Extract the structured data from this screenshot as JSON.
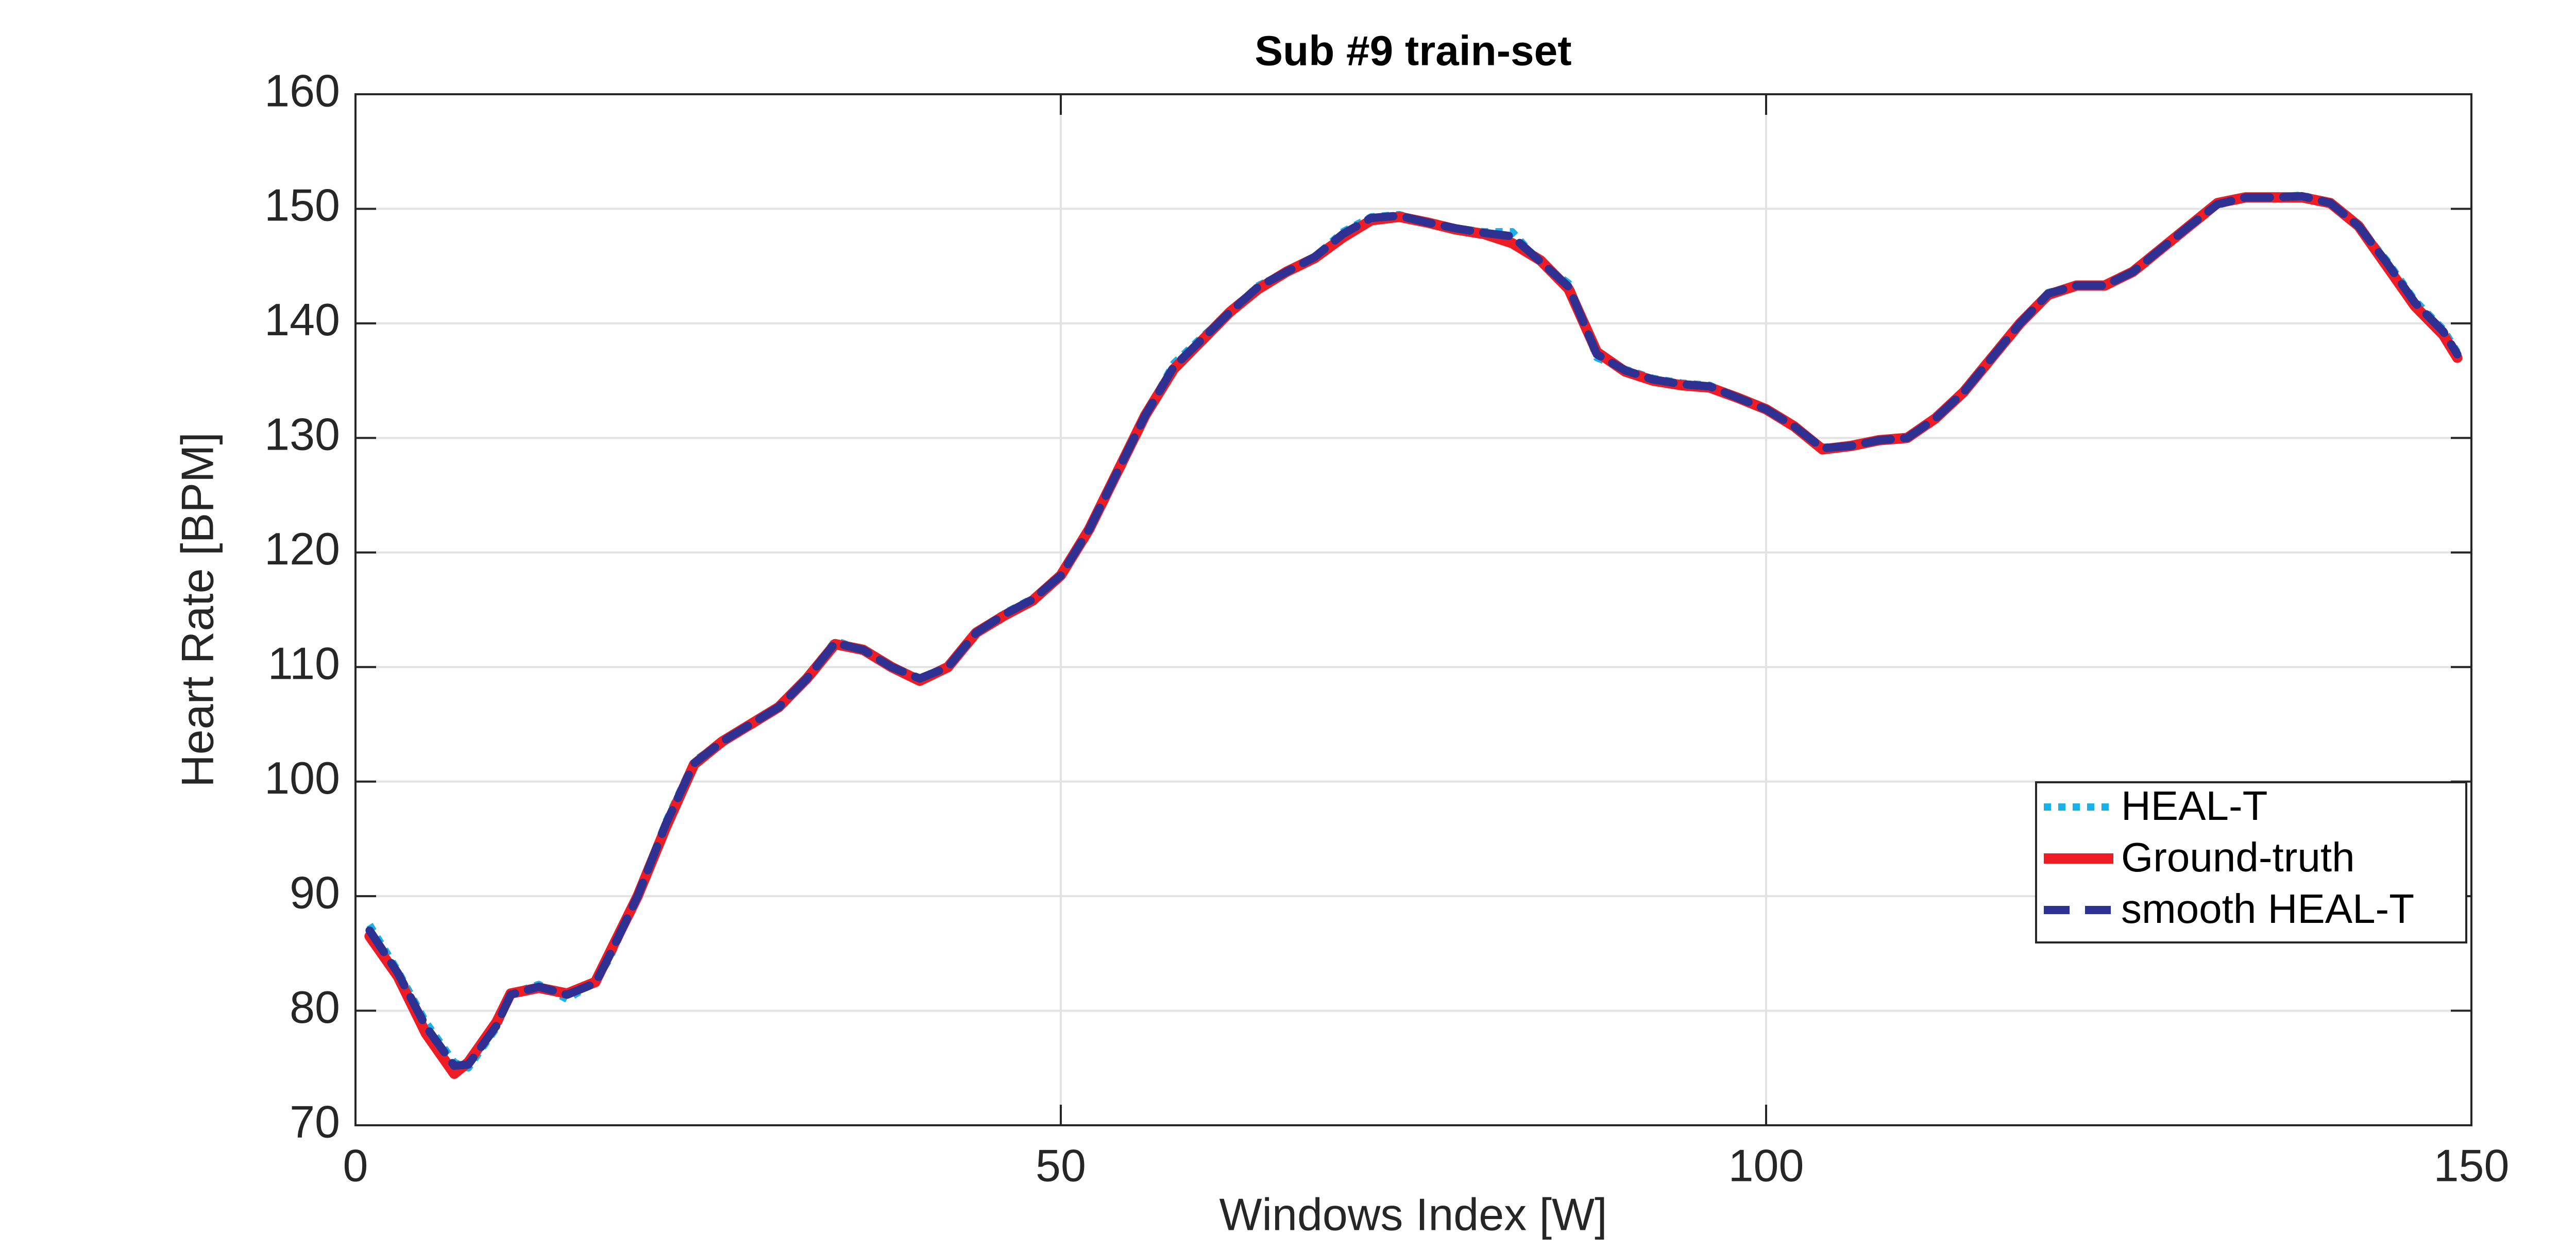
{
  "chart_data": {
    "type": "line",
    "title": "Sub #9 train-set",
    "xlabel": "Windows Index [W]",
    "ylabel": "Heart Rate [BPM]",
    "x": [
      1,
      3,
      5,
      7,
      8,
      10,
      11,
      13,
      15,
      17,
      18,
      20,
      22,
      24,
      26,
      28,
      30,
      32,
      34,
      36,
      38,
      40,
      42,
      44,
      46,
      48,
      50,
      52,
      54,
      56,
      58,
      60,
      62,
      64,
      66,
      68,
      70,
      72,
      74,
      76,
      78,
      80,
      82,
      84,
      86,
      88,
      90,
      92,
      94,
      96,
      98,
      100,
      102,
      104,
      106,
      108,
      110,
      112,
      114,
      116,
      118,
      120,
      122,
      124,
      126,
      128,
      130,
      132,
      134,
      136,
      138,
      140,
      142,
      144,
      146,
      148,
      149
    ],
    "series": [
      {
        "name": "HEAL-T",
        "color": "#1ab0e8",
        "style": "dotted",
        "values": [
          87.5,
          83.5,
          79,
          75.5,
          75,
          78.5,
          81.5,
          82.3,
          81,
          82.5,
          84.5,
          90,
          96.5,
          101.8,
          103.5,
          105,
          106.5,
          109,
          112.3,
          111.5,
          110,
          109,
          110,
          113,
          114.7,
          116,
          118,
          122,
          127,
          132,
          136.5,
          138.8,
          141,
          143.3,
          144.5,
          145.8,
          148,
          149.3,
          149.5,
          148.8,
          148.3,
          148,
          148,
          145.3,
          143.5,
          137,
          136,
          135.2,
          134.8,
          134.6,
          133.5,
          132.5,
          131,
          129.2,
          129.3,
          129.8,
          129.9,
          131.7,
          134,
          137,
          140,
          142.7,
          143.3,
          143.3,
          144.5,
          146.5,
          148.5,
          150.3,
          151,
          151,
          151.2,
          150.5,
          148.5,
          145.5,
          142,
          139.5,
          137.5
        ]
      },
      {
        "name": "Ground-truth",
        "color": "#ee1c25",
        "style": "solid",
        "values": [
          86.5,
          83,
          78,
          74.5,
          75.5,
          79,
          81.5,
          82,
          81.5,
          82.5,
          85,
          90,
          96,
          101.5,
          103.5,
          105,
          106.5,
          109,
          112,
          111.5,
          110,
          108.8,
          110,
          113,
          114.5,
          115.8,
          118,
          122,
          127,
          132,
          136,
          138.5,
          141,
          143,
          144.5,
          145.7,
          147.5,
          149,
          149.3,
          148.8,
          148.2,
          147.8,
          147,
          145.5,
          143,
          137.5,
          135.8,
          135,
          134.6,
          134.4,
          133.5,
          132.5,
          131,
          129,
          129.3,
          129.8,
          130,
          131.7,
          134,
          137,
          140,
          142.5,
          143.3,
          143.3,
          144.5,
          146.5,
          148.5,
          150.5,
          151,
          151,
          151,
          150.5,
          148.5,
          145,
          141.5,
          139,
          137
        ]
      },
      {
        "name": "smooth HEAL-T",
        "color": "#2e3192",
        "style": "dashed",
        "values": [
          87,
          83.3,
          78.6,
          75.2,
          75.3,
          78.7,
          81.4,
          82.1,
          81.4,
          82.4,
          84.8,
          90,
          96.3,
          101.6,
          103.5,
          105,
          106.5,
          109,
          112.1,
          111.5,
          110,
          109,
          110,
          113,
          114.6,
          115.9,
          118,
          122,
          127,
          132,
          136.2,
          138.6,
          141,
          143.2,
          144.5,
          145.8,
          147.8,
          149.2,
          149.4,
          148.8,
          148.3,
          147.9,
          147.6,
          145.4,
          143.2,
          137.3,
          135.9,
          135.1,
          134.7,
          134.5,
          133.5,
          132.5,
          131,
          129.1,
          129.3,
          129.8,
          130,
          131.7,
          134,
          137,
          140,
          142.6,
          143.3,
          143.3,
          144.5,
          146.5,
          148.5,
          150.4,
          151,
          151,
          151.1,
          150.5,
          148.5,
          145.3,
          141.8,
          139.3,
          137.3
        ]
      }
    ],
    "xlim": [
      0,
      150
    ],
    "xticks": [
      0,
      50,
      100,
      150
    ],
    "ylim": [
      70,
      160
    ],
    "yticks": [
      70,
      80,
      90,
      100,
      110,
      120,
      130,
      140,
      150,
      160
    ],
    "grid": true,
    "legend": "lower right"
  }
}
